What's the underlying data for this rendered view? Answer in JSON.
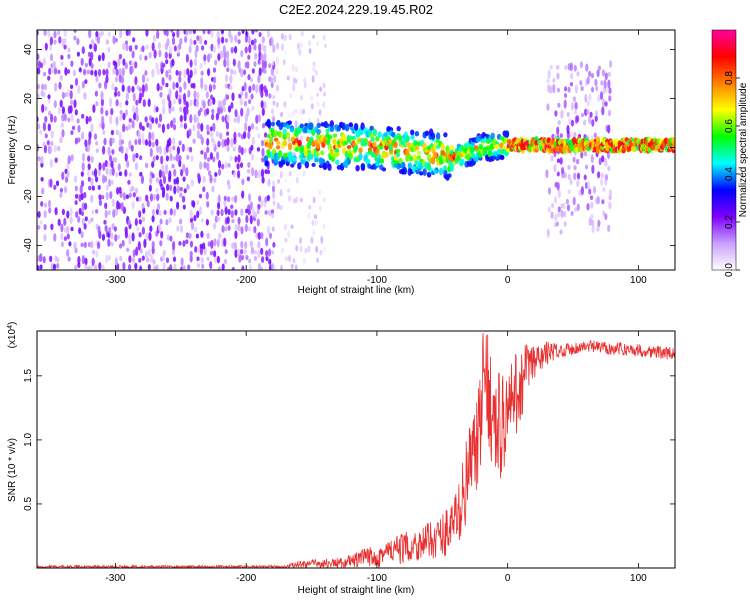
{
  "title": "C2E2.2024.229.19.45.R02",
  "chart_data": [
    {
      "type": "heatmap",
      "id": "spectrogram",
      "xlabel": "Height of straight line (km)",
      "ylabel": "Frequency (Hz)",
      "xlim": [
        -360,
        128
      ],
      "ylim": [
        -50,
        48
      ],
      "x_ticks": [
        -300,
        -200,
        -100,
        0,
        100
      ],
      "x_tick_labels": [
        "-300",
        "-200",
        "-100",
        "0",
        "100"
      ],
      "y_ticks": [
        -40,
        -20,
        0,
        20,
        40
      ],
      "y_tick_labels": [
        "-40",
        "-20",
        "0",
        "20",
        "40"
      ],
      "grid": false,
      "regions": [
        {
          "name": "dense noise",
          "x": [
            -360,
            -180
          ],
          "y": [
            -50,
            48
          ],
          "amplitude": [
            0.05,
            0.25
          ]
        },
        {
          "name": "sparse noise",
          "x": [
            -180,
            -140
          ],
          "y": [
            -50,
            48
          ],
          "amplitude": [
            0.02,
            0.12
          ]
        },
        {
          "name": "signal band",
          "x": [
            -185,
            128
          ],
          "center_freq": [
            [
              -185,
              2
            ],
            [
              -100,
              0
            ],
            [
              -40,
              -4
            ],
            [
              -20,
              0
            ],
            [
              0,
              1
            ],
            [
              128,
              1
            ]
          ],
          "amplitude": [
            0.3,
            0.95
          ]
        },
        {
          "name": "side noise",
          "x": [
            30,
            77
          ],
          "y": [
            -35,
            35
          ],
          "amplitude": [
            0.05,
            0.25
          ]
        }
      ],
      "colorbar": {
        "label": "Normalized spectral amplitude",
        "range": [
          0.0,
          1.0
        ],
        "ticks": [
          0.0,
          0.2,
          0.4,
          0.6,
          0.8
        ],
        "tick_labels": [
          "0.0",
          "0.2",
          "0.4",
          "0.6",
          "0.8"
        ],
        "colormap": [
          "#ffffff",
          "#c9a0ff",
          "#7f00ff",
          "#0000ff",
          "#00ffff",
          "#00ff00",
          "#ffff00",
          "#ff8000",
          "#ff0000",
          "#ff00a0"
        ]
      }
    },
    {
      "type": "line",
      "id": "snr",
      "xlabel": "Height of straight line (km)",
      "ylabel": "SNR (10 * v/v)",
      "scale_label": "(x10",
      "scale_exponent": "4",
      "scale_suffix": ")",
      "xlim": [
        -360,
        128
      ],
      "ylim": [
        0,
        1.85
      ],
      "x_ticks": [
        -300,
        -200,
        -100,
        0,
        100
      ],
      "x_tick_labels": [
        "-300",
        "-200",
        "-100",
        "0",
        "100"
      ],
      "y_ticks": [
        0.5,
        1.0,
        1.5
      ],
      "y_tick_labels": [
        "0.5",
        "1.0",
        "1.5"
      ],
      "grid": false,
      "series": [
        {
          "color": "#e83030",
          "trend": [
            [
              -360,
              0.01
            ],
            [
              -170,
              0.01
            ],
            [
              -160,
              0.03
            ],
            [
              -125,
              0.04
            ],
            [
              -100,
              0.1
            ],
            [
              -70,
              0.18
            ],
            [
              -50,
              0.25
            ],
            [
              -38,
              0.4
            ],
            [
              -30,
              0.75
            ],
            [
              -22,
              1.0
            ],
            [
              -17,
              1.6
            ],
            [
              -10,
              1.05
            ],
            [
              0,
              1.2
            ],
            [
              15,
              1.55
            ],
            [
              30,
              1.68
            ],
            [
              60,
              1.73
            ],
            [
              100,
              1.7
            ],
            [
              128,
              1.67
            ]
          ],
          "noise": [
            [
              -360,
              0.01
            ],
            [
              -170,
              0.01
            ],
            [
              -160,
              0.03
            ],
            [
              -125,
              0.04
            ],
            [
              -100,
              0.1
            ],
            [
              -60,
              0.14
            ],
            [
              -40,
              0.22
            ],
            [
              -30,
              0.35
            ],
            [
              -18,
              0.45
            ],
            [
              -5,
              0.45
            ],
            [
              10,
              0.3
            ],
            [
              25,
              0.12
            ],
            [
              40,
              0.05
            ],
            [
              128,
              0.05
            ]
          ]
        }
      ]
    }
  ]
}
